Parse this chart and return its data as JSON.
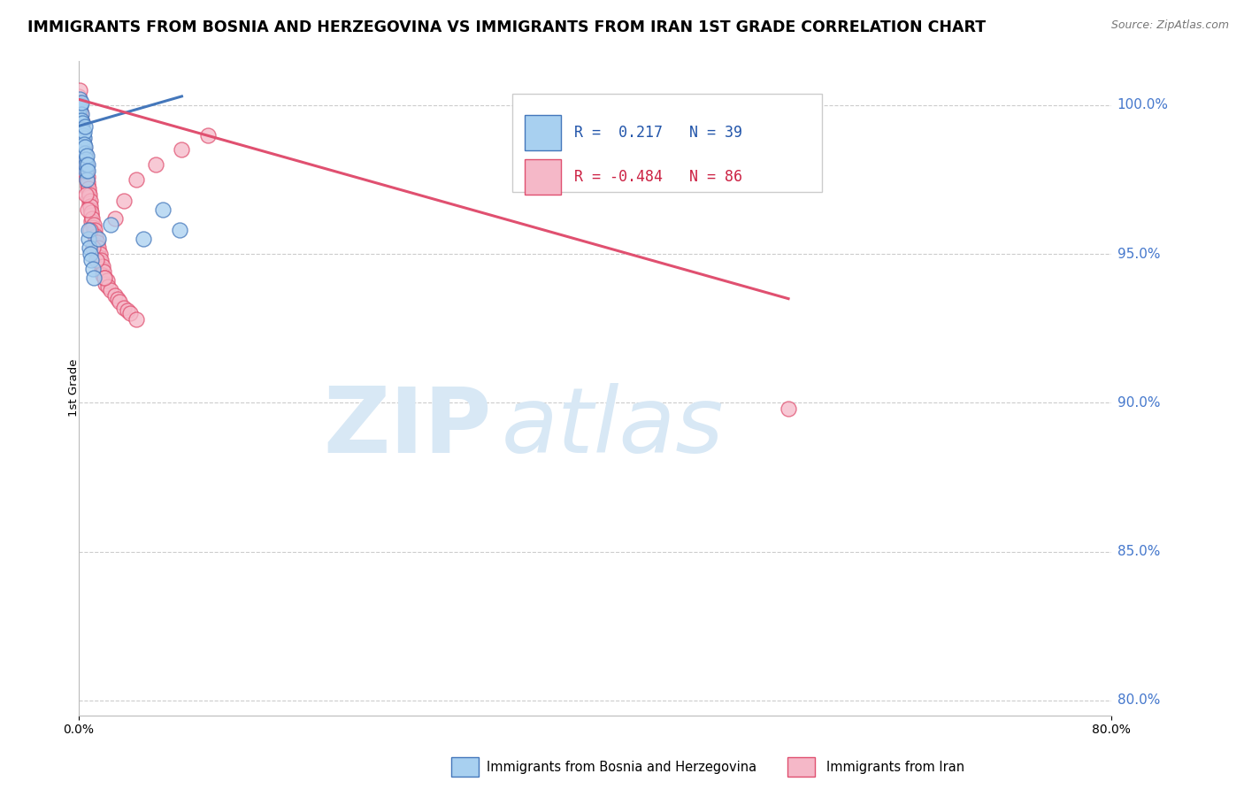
{
  "title": "IMMIGRANTS FROM BOSNIA AND HERZEGOVINA VS IMMIGRANTS FROM IRAN 1ST GRADE CORRELATION CHART",
  "source": "Source: ZipAtlas.com",
  "ylabel": "1st Grade",
  "xlim": [
    0.0,
    80.0
  ],
  "ylim": [
    79.5,
    101.5
  ],
  "yticks": [
    80.0,
    85.0,
    90.0,
    95.0,
    100.0
  ],
  "xticks": [
    0.0,
    80.0
  ],
  "xtick_labels": [
    "0.0%",
    "80.0%"
  ],
  "series1_label": "Immigrants from Bosnia and Herzegovina",
  "series1_color": "#a8d0f0",
  "series1_R": 0.217,
  "series1_N": 39,
  "series1_line_color": "#4477bb",
  "series2_label": "Immigrants from Iran",
  "series2_color": "#f5b8c8",
  "series2_R": -0.484,
  "series2_N": 86,
  "series2_line_color": "#e05070",
  "watermark_zip_color": "#d8e8f5",
  "watermark_atlas_color": "#d8e8f5",
  "background_color": "#ffffff",
  "grid_color": "#cccccc",
  "title_fontsize": 12.5,
  "ytick_color": "#4477cc",
  "legend_R1_color": "#2255aa",
  "legend_R2_color": "#cc2244",
  "bosnia_x": [
    0.05,
    0.08,
    0.1,
    0.12,
    0.15,
    0.18,
    0.2,
    0.22,
    0.25,
    0.28,
    0.3,
    0.32,
    0.35,
    0.38,
    0.4,
    0.42,
    0.45,
    0.48,
    0.5,
    0.52,
    0.55,
    0.58,
    0.6,
    0.62,
    0.65,
    0.68,
    0.7,
    0.75,
    0.8,
    0.85,
    0.9,
    1.0,
    1.1,
    1.2,
    1.5,
    2.5,
    5.0,
    6.5,
    7.8
  ],
  "bosnia_y": [
    99.8,
    100.2,
    99.5,
    99.9,
    100.0,
    99.3,
    99.7,
    99.5,
    100.1,
    99.4,
    99.2,
    98.8,
    99.0,
    98.5,
    98.9,
    99.1,
    98.7,
    99.3,
    98.4,
    98.6,
    97.8,
    98.2,
    98.0,
    98.3,
    97.5,
    98.0,
    97.8,
    95.5,
    95.8,
    95.2,
    95.0,
    94.8,
    94.5,
    94.2,
    95.5,
    96.0,
    95.5,
    96.5,
    95.8
  ],
  "iran_x": [
    0.05,
    0.08,
    0.1,
    0.12,
    0.15,
    0.18,
    0.2,
    0.22,
    0.25,
    0.28,
    0.3,
    0.32,
    0.35,
    0.38,
    0.4,
    0.42,
    0.45,
    0.48,
    0.5,
    0.52,
    0.55,
    0.58,
    0.6,
    0.62,
    0.65,
    0.68,
    0.7,
    0.72,
    0.75,
    0.78,
    0.8,
    0.82,
    0.85,
    0.88,
    0.9,
    0.92,
    0.95,
    0.98,
    1.0,
    1.05,
    1.1,
    1.15,
    1.2,
    1.25,
    1.3,
    1.35,
    1.4,
    1.45,
    1.5,
    1.55,
    1.6,
    1.65,
    1.7,
    1.75,
    1.8,
    1.85,
    1.9,
    1.95,
    2.0,
    2.1,
    2.2,
    2.3,
    2.5,
    2.8,
    3.0,
    3.2,
    3.5,
    3.8,
    4.0,
    4.5,
    0.15,
    0.25,
    0.4,
    0.55,
    0.7,
    0.9,
    1.1,
    1.4,
    2.0,
    2.8,
    3.5,
    4.5,
    6.0,
    8.0,
    10.0,
    55.0
  ],
  "iran_y": [
    100.3,
    100.5,
    100.1,
    100.0,
    99.8,
    99.6,
    99.5,
    99.3,
    99.2,
    99.4,
    99.0,
    98.9,
    98.7,
    98.8,
    98.5,
    98.6,
    98.3,
    98.4,
    98.1,
    98.2,
    97.9,
    98.0,
    97.7,
    97.8,
    97.5,
    97.6,
    97.3,
    97.4,
    97.1,
    97.2,
    96.9,
    97.0,
    96.7,
    96.8,
    96.5,
    96.6,
    96.3,
    96.4,
    96.1,
    96.2,
    95.9,
    96.0,
    95.7,
    95.8,
    95.5,
    95.6,
    95.3,
    95.4,
    95.1,
    95.2,
    94.9,
    95.0,
    94.7,
    94.8,
    94.5,
    94.6,
    94.3,
    94.4,
    94.2,
    94.0,
    94.1,
    93.9,
    93.8,
    93.6,
    93.5,
    93.4,
    93.2,
    93.1,
    93.0,
    92.8,
    99.5,
    98.5,
    97.8,
    97.0,
    96.5,
    95.8,
    95.2,
    94.8,
    94.2,
    96.2,
    96.8,
    97.5,
    98.0,
    98.5,
    99.0,
    89.8
  ],
  "trend_bosnia_x0": 0.0,
  "trend_bosnia_y0": 99.3,
  "trend_bosnia_x1": 8.0,
  "trend_bosnia_y1": 100.3,
  "trend_iran_x0": 0.0,
  "trend_iran_y0": 100.2,
  "trend_iran_x1": 55.0,
  "trend_iran_y1": 93.5
}
